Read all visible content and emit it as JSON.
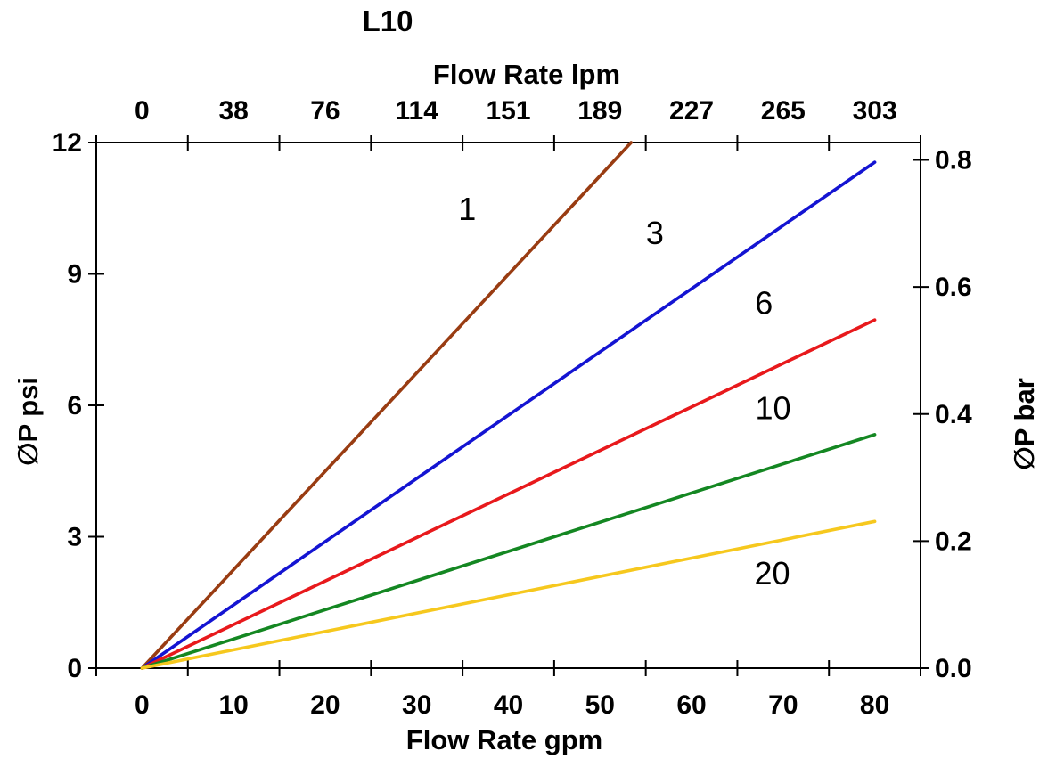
{
  "chart_data": {
    "type": "line",
    "title": "L10",
    "top_axis": {
      "label": "Flow Rate lpm",
      "ticks": [
        "0",
        "38",
        "76",
        "114",
        "151",
        "189",
        "227",
        "265",
        "303"
      ]
    },
    "bottom_axis": {
      "label": "Flow Rate gpm",
      "ticks": [
        "0",
        "10",
        "20",
        "30",
        "40",
        "50",
        "60",
        "70",
        "80"
      ]
    },
    "left_axis": {
      "label": "∅P psi",
      "ticks": [
        "0",
        "3",
        "6",
        "9",
        "12"
      ],
      "range": [
        0,
        12
      ]
    },
    "right_axis": {
      "label": "∅P bar",
      "ticks": [
        "0.0",
        "0.2",
        "0.4",
        "0.6",
        "0.8"
      ],
      "range": [
        0,
        0.83
      ]
    },
    "x_range_gpm": [
      0,
      80
    ],
    "grid": false,
    "axes_color": "#000000",
    "background": "#ffffff",
    "series": [
      {
        "name": "1",
        "color": "#993C12",
        "points_gpm_psi": [
          [
            0,
            0
          ],
          [
            53.4,
            12.0
          ]
        ],
        "label_pos_gpm_psi": [
          35.5,
          10.5
        ]
      },
      {
        "name": "3",
        "color": "#1414D2",
        "points_gpm_psi": [
          [
            0,
            0
          ],
          [
            80,
            11.55
          ]
        ],
        "label_pos_gpm_psi": [
          56.0,
          9.95
        ]
      },
      {
        "name": "6",
        "color": "#E8191C",
        "points_gpm_psi": [
          [
            0,
            0
          ],
          [
            80,
            7.95
          ]
        ],
        "label_pos_gpm_psi": [
          67.9,
          8.35
        ]
      },
      {
        "name": "10",
        "color": "#148722",
        "points_gpm_psi": [
          [
            0,
            0
          ],
          [
            80,
            5.33
          ]
        ],
        "label_pos_gpm_psi": [
          68.9,
          5.95
        ]
      },
      {
        "name": "20",
        "color": "#F6C81E",
        "points_gpm_psi": [
          [
            0,
            0
          ],
          [
            80,
            3.35
          ]
        ],
        "label_pos_gpm_psi": [
          68.8,
          2.18
        ]
      }
    ]
  }
}
